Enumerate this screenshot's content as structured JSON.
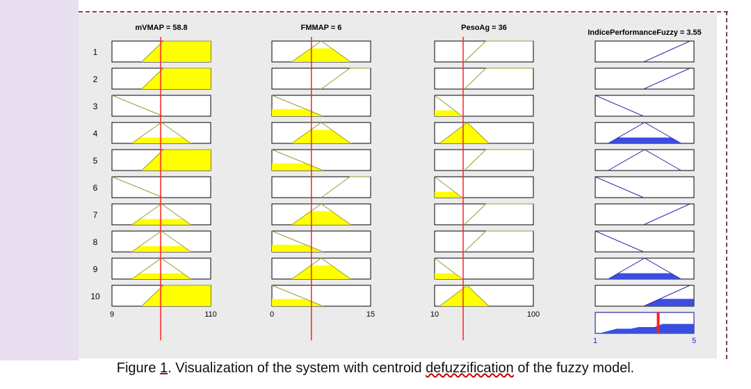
{
  "figure": {
    "variables": [
      {
        "label": "mVMAP = 58.8",
        "range_min": "9",
        "range_max": "110"
      },
      {
        "label": "FMMAP = 6",
        "range_min": "0",
        "range_max": "15"
      },
      {
        "label": "PesoAg = 36",
        "range_min": "10",
        "range_max": "100"
      }
    ],
    "output": {
      "label": "IndicePerformanceFuzzy = 3.55",
      "range_min": "1",
      "range_max": "5"
    },
    "rule_numbers": [
      "1",
      "2",
      "3",
      "4",
      "5",
      "6",
      "7",
      "8",
      "9",
      "10"
    ],
    "colors": {
      "input_fill": "#ffff00",
      "input_line": "#9a9a30",
      "output_fill": "#3a4ee0",
      "output_line": "#2a2aa8",
      "cursor": "#ff2020",
      "panel_bg": "#ebebeb"
    },
    "input_cursor_fractions": [
      0.493,
      0.4,
      0.289
    ],
    "output_cursor_fraction": 0.6375
  },
  "caption": {
    "prefix": "Figure ",
    "number": "1",
    "middle": ". Visualization of the system with centroid ",
    "underlined_word": "defuzzification",
    "suffix": " of the fuzzy model."
  }
}
